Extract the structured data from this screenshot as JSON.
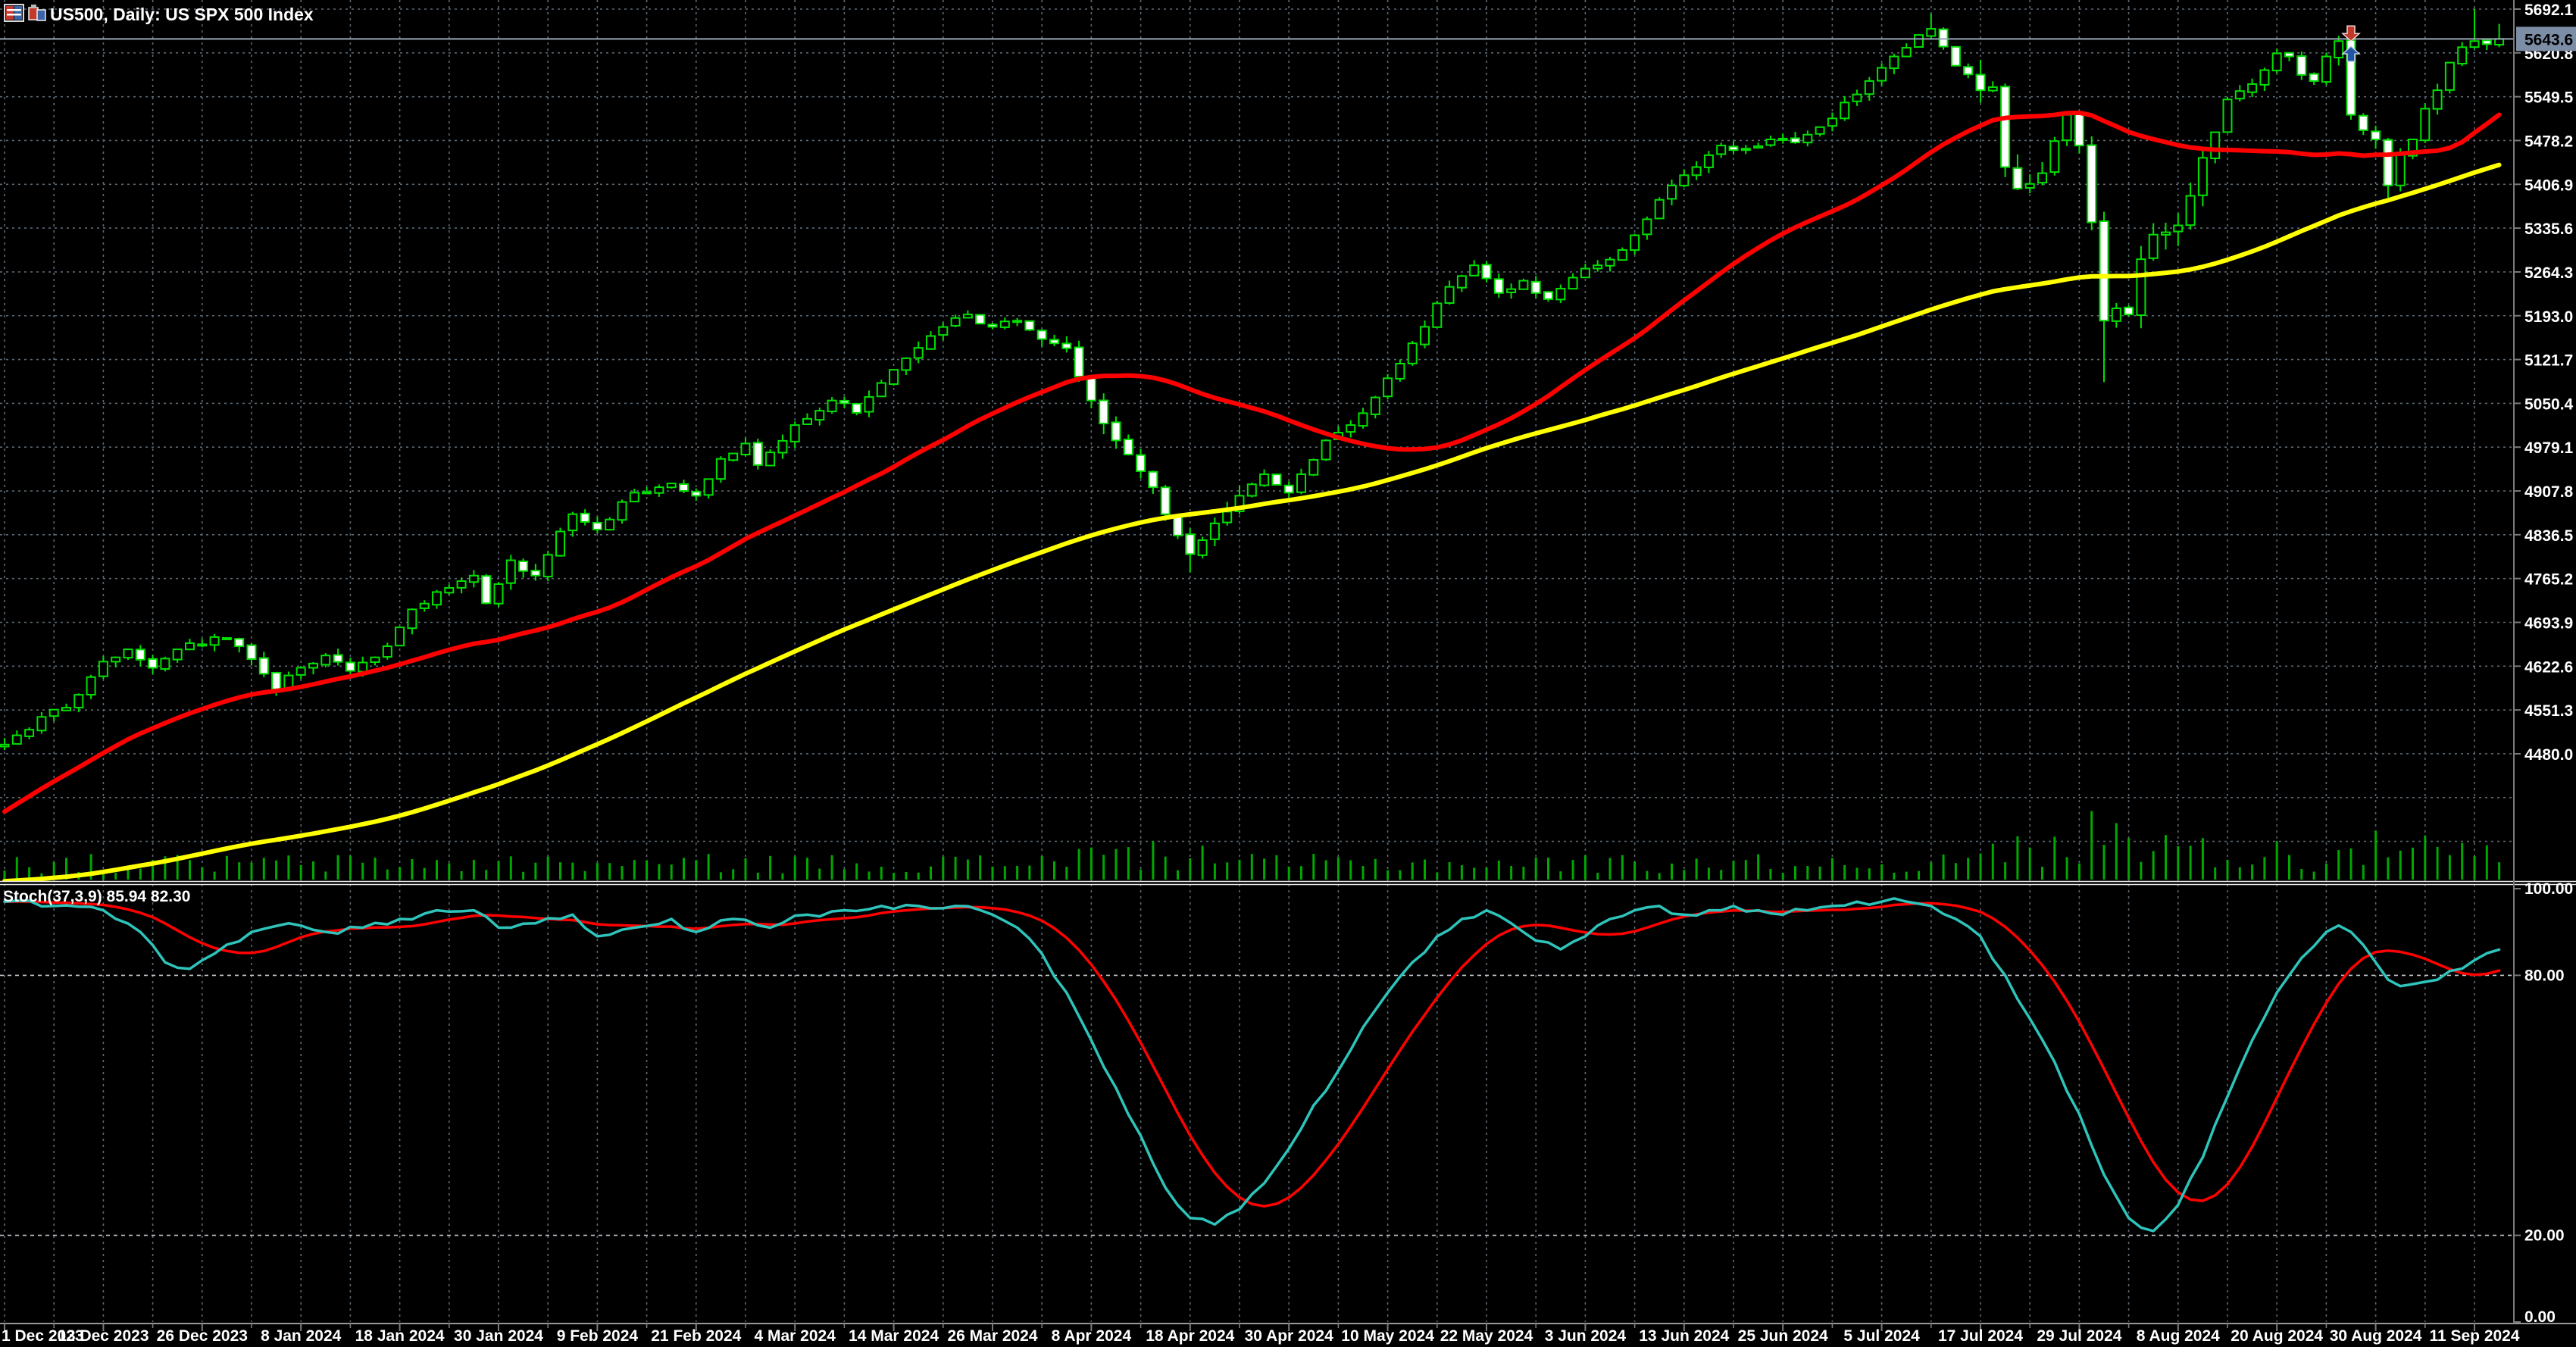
{
  "window": {
    "title_text": "US500, Daily:  US SPX 500 Index",
    "symbol": "US500",
    "timeframe": "Daily",
    "description": "US SPX 500 Index"
  },
  "colors": {
    "background": "#000000",
    "grid": "#5c6872",
    "level_line": "#c6cbd2",
    "axis_line": "#7a7a7a",
    "axis_text": "#ffffff",
    "candle_outline": "#00e000",
    "bull_fill": "#000000",
    "bear_fill": "#ffffff",
    "ma_fast": "#ff0000",
    "ma_slow": "#ffff00",
    "volume": "#00a800",
    "stoch_main": "#2ec4bb",
    "stoch_signal": "#ff0000",
    "price_line": "#9aa7b8",
    "price_box_bg": "#7c8da6",
    "separator": "#e8e8e8",
    "sell_arrow": "#c0392b",
    "buy_arrow": "#2455a4"
  },
  "chart_data": {
    "type": "candlestick",
    "title": "US500, Daily:  US SPX 500 Index",
    "noise_seed": 987654321,
    "bars": 203,
    "price_axis": {
      "tick_labels": [
        "5692.1",
        "5620.8",
        "5549.5",
        "5478.2",
        "5406.9",
        "5335.6",
        "5264.3",
        "5193.0",
        "5121.7",
        "5050.4",
        "4979.1",
        "4907.8",
        "4836.5",
        "4765.2",
        "4693.9",
        "4622.6",
        "4551.3",
        "4480.0"
      ],
      "extra_gridline_values": [
        4408.7,
        4337.4
      ],
      "current_price": "5643.6",
      "current_price_value": 5643.6
    },
    "time_axis": {
      "labels": [
        "1 Dec 2023",
        "13 Dec 2023",
        "26 Dec 2023",
        "8 Jan 2024",
        "18 Jan 2024",
        "30 Jan 2024",
        "9 Feb 2024",
        "21 Feb 2024",
        "4 Mar 2024",
        "14 Mar 2024",
        "26 Mar 2024",
        "8 Apr 2024",
        "18 Apr 2024",
        "30 Apr 2024",
        "10 May 2024",
        "22 May 2024",
        "3 Jun 2024",
        "13 Jun 2024",
        "25 Jun 2024",
        "5 Jul 2024",
        "17 Jul 2024",
        "29 Jul 2024",
        "8 Aug 2024",
        "20 Aug 2024",
        "30 Aug 2024",
        "11 Sep 2024"
      ],
      "bars_per_label": 8,
      "bars_per_gridline": 4
    },
    "close_anchors": [
      [
        0,
        4495
      ],
      [
        3,
        4540
      ],
      [
        5,
        4555
      ],
      [
        8,
        4630
      ],
      [
        10,
        4650
      ],
      [
        12,
        4620
      ],
      [
        14,
        4650
      ],
      [
        17,
        4670
      ],
      [
        19,
        4655
      ],
      [
        22,
        4585
      ],
      [
        24,
        4620
      ],
      [
        26,
        4640
      ],
      [
        28,
        4615
      ],
      [
        31,
        4655
      ],
      [
        33,
        4715
      ],
      [
        36,
        4750
      ],
      [
        38,
        4770
      ],
      [
        39,
        4725
      ],
      [
        41,
        4795
      ],
      [
        43,
        4770
      ],
      [
        46,
        4870
      ],
      [
        48,
        4845
      ],
      [
        51,
        4905
      ],
      [
        54,
        4920
      ],
      [
        56,
        4900
      ],
      [
        58,
        4960
      ],
      [
        60,
        4985
      ],
      [
        61,
        4950
      ],
      [
        64,
        5015
      ],
      [
        67,
        5055
      ],
      [
        69,
        5035
      ],
      [
        72,
        5105
      ],
      [
        75,
        5160
      ],
      [
        78,
        5195
      ],
      [
        80,
        5175
      ],
      [
        82,
        5185
      ],
      [
        84,
        5155
      ],
      [
        86,
        5140
      ],
      [
        88,
        5055
      ],
      [
        90,
        4990
      ],
      [
        92,
        4940
      ],
      [
        94,
        4870
      ],
      [
        96,
        4805
      ],
      [
        98,
        4855
      ],
      [
        100,
        4900
      ],
      [
        102,
        4935
      ],
      [
        104,
        4905
      ],
      [
        105,
        4935
      ],
      [
        107,
        4990
      ],
      [
        109,
        5015
      ],
      [
        111,
        5060
      ],
      [
        113,
        5115
      ],
      [
        115,
        5175
      ],
      [
        117,
        5240
      ],
      [
        119,
        5275
      ],
      [
        121,
        5230
      ],
      [
        123,
        5250
      ],
      [
        125,
        5220
      ],
      [
        127,
        5255
      ],
      [
        129,
        5275
      ],
      [
        131,
        5300
      ],
      [
        133,
        5350
      ],
      [
        135,
        5405
      ],
      [
        137,
        5435
      ],
      [
        139,
        5470
      ],
      [
        141,
        5465
      ],
      [
        143,
        5480
      ],
      [
        145,
        5475
      ],
      [
        147,
        5500
      ],
      [
        149,
        5540
      ],
      [
        151,
        5575
      ],
      [
        153,
        5615
      ],
      [
        155,
        5650
      ],
      [
        156,
        5660
      ],
      [
        158,
        5600
      ],
      [
        160,
        5560
      ],
      [
        161,
        5565
      ],
      [
        162,
        5435
      ],
      [
        163,
        5400
      ],
      [
        165,
        5425
      ],
      [
        167,
        5520
      ],
      [
        168,
        5470
      ],
      [
        169,
        5345
      ],
      [
        170,
        5185
      ],
      [
        171,
        5205
      ],
      [
        172,
        5195
      ],
      [
        173,
        5285
      ],
      [
        174,
        5325
      ],
      [
        176,
        5340
      ],
      [
        178,
        5450
      ],
      [
        180,
        5545
      ],
      [
        182,
        5570
      ],
      [
        184,
        5620
      ],
      [
        185,
        5615
      ],
      [
        186,
        5585
      ],
      [
        187,
        5575
      ],
      [
        188,
        5615
      ],
      [
        189,
        5640
      ],
      [
        190,
        5520
      ],
      [
        191,
        5495
      ],
      [
        192,
        5480
      ],
      [
        193,
        5405
      ],
      [
        194,
        5455
      ],
      [
        195,
        5480
      ],
      [
        196,
        5530
      ],
      [
        197,
        5560
      ],
      [
        198,
        5605
      ],
      [
        199,
        5630
      ],
      [
        200,
        5640
      ],
      [
        201,
        5635
      ],
      [
        202,
        5643.6
      ]
    ],
    "prehistory_anchors": [
      [
        -96,
        4450
      ],
      [
        -85,
        4390
      ],
      [
        -75,
        4280
      ],
      [
        -65,
        4320
      ],
      [
        -55,
        4180
      ],
      [
        -45,
        4080
      ],
      [
        -35,
        4030
      ],
      [
        -28,
        4150
      ],
      [
        -20,
        4320
      ],
      [
        -14,
        4450
      ],
      [
        -8,
        4520
      ],
      [
        -1,
        4495
      ]
    ],
    "wick_overrides": {
      "96": {
        "low": 4775
      },
      "156": {
        "high": 5685
      },
      "170": {
        "low": 5085
      },
      "190": {
        "high": 5642
      },
      "193": {
        "low": 5385
      },
      "200": {
        "high": 5692
      },
      "202": {
        "high": 5668
      }
    },
    "volatility_ranges": [
      {
        "from": 84,
        "to": 100,
        "f": 1.6
      },
      {
        "from": 160,
        "to": 178,
        "f": 2.2
      },
      {
        "from": 188,
        "to": 196,
        "f": 1.7
      }
    ],
    "ma_fast": {
      "name": "fast-moving-average",
      "period": 30
    },
    "ma_slow": {
      "name": "slow-moving-average",
      "period": 90
    },
    "volume_ranges": [
      {
        "from": 84,
        "to": 100,
        "f": 1.5
      },
      {
        "from": 160,
        "to": 168,
        "f": 1.8
      },
      {
        "from": 169,
        "to": 176,
        "f": 2.9
      },
      {
        "from": 177,
        "to": 185,
        "f": 1.7
      },
      {
        "from": 188,
        "to": 196,
        "f": 1.9
      },
      {
        "from": 197,
        "to": 202,
        "f": 1.5
      }
    ],
    "stochastic": {
      "display": "Stoch(37,3,9) 85.94 82.30",
      "k_period": 37,
      "slowing": 3,
      "d_period": 9,
      "main_value": "85.94",
      "signal_value": "82.30",
      "axis_labels": [
        {
          "v": 100,
          "t": "100.00"
        },
        {
          "v": 80,
          "t": "80.00"
        },
        {
          "v": 20,
          "t": "20.00"
        },
        {
          "v": 0,
          "t": "0.00"
        }
      ],
      "level_lines": [
        80,
        20
      ],
      "main_anchors": [
        [
          0,
          97
        ],
        [
          4,
          96
        ],
        [
          8,
          95
        ],
        [
          11,
          90
        ],
        [
          13,
          83
        ],
        [
          15,
          81.5
        ],
        [
          17,
          85
        ],
        [
          20,
          90
        ],
        [
          23,
          92
        ],
        [
          26,
          90
        ],
        [
          29,
          91
        ],
        [
          32,
          93
        ],
        [
          35,
          95
        ],
        [
          38,
          95
        ],
        [
          40,
          91
        ],
        [
          43,
          92
        ],
        [
          46,
          94
        ],
        [
          48,
          89
        ],
        [
          51,
          91
        ],
        [
          54,
          93
        ],
        [
          56,
          90
        ],
        [
          59,
          93
        ],
        [
          62,
          91
        ],
        [
          65,
          94
        ],
        [
          68,
          95
        ],
        [
          71,
          96
        ],
        [
          74,
          96
        ],
        [
          77,
          96
        ],
        [
          80,
          94
        ],
        [
          82,
          91
        ],
        [
          84,
          85
        ],
        [
          86,
          76
        ],
        [
          88,
          65
        ],
        [
          90,
          54
        ],
        [
          92,
          43
        ],
        [
          94,
          31
        ],
        [
          96,
          24
        ],
        [
          98,
          22.5
        ],
        [
          100,
          26
        ],
        [
          102,
          32
        ],
        [
          104,
          40
        ],
        [
          106,
          50
        ],
        [
          108,
          58
        ],
        [
          110,
          68
        ],
        [
          112,
          76
        ],
        [
          114,
          83
        ],
        [
          116,
          89
        ],
        [
          118,
          93
        ],
        [
          120,
          95
        ],
        [
          122,
          92
        ],
        [
          124,
          88
        ],
        [
          126,
          86
        ],
        [
          128,
          89
        ],
        [
          130,
          93
        ],
        [
          132,
          95
        ],
        [
          134,
          96
        ],
        [
          136,
          94
        ],
        [
          138,
          95
        ],
        [
          140,
          96
        ],
        [
          142,
          95
        ],
        [
          144,
          94
        ],
        [
          146,
          95
        ],
        [
          148,
          96
        ],
        [
          150,
          97
        ],
        [
          152,
          97
        ],
        [
          154,
          97
        ],
        [
          156,
          96
        ],
        [
          158,
          93
        ],
        [
          160,
          89
        ],
        [
          162,
          80
        ],
        [
          164,
          70
        ],
        [
          166,
          60
        ],
        [
          168,
          48
        ],
        [
          170,
          34
        ],
        [
          172,
          24
        ],
        [
          174,
          21
        ],
        [
          176,
          27
        ],
        [
          178,
          38
        ],
        [
          180,
          52
        ],
        [
          182,
          65
        ],
        [
          184,
          76
        ],
        [
          186,
          84
        ],
        [
          188,
          90
        ],
        [
          189,
          91.5
        ],
        [
          190,
          90
        ],
        [
          191,
          87
        ],
        [
          192,
          83
        ],
        [
          193,
          79
        ],
        [
          194,
          77.5
        ],
        [
          196,
          78.5
        ],
        [
          198,
          81
        ],
        [
          200,
          83.5
        ],
        [
          202,
          85.94
        ]
      ]
    },
    "markers": [
      {
        "bar": 190,
        "type": "sell-arrow",
        "tip_y_price": 5640
      },
      {
        "bar": 190,
        "type": "buy-arrow",
        "tip_y_price": 5634
      }
    ]
  }
}
